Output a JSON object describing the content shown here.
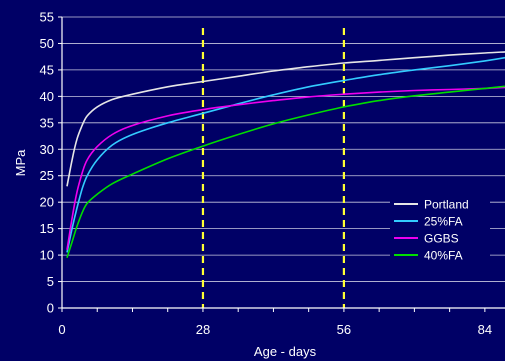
{
  "chart_data": {
    "type": "line",
    "title": "",
    "xlabel": "Age - days",
    "ylabel": "MPa",
    "xlim": [
      0,
      88
    ],
    "ylim": [
      0,
      55
    ],
    "x_ticks": [
      0,
      28,
      56,
      84
    ],
    "y_ticks": [
      0,
      5,
      10,
      15,
      20,
      25,
      30,
      35,
      40,
      45,
      50,
      55
    ],
    "grid": "horizontal",
    "legend_position": "right",
    "reference_lines": [
      {
        "axis": "x",
        "value": 28,
        "style": "dashed",
        "color": "#ffff33"
      },
      {
        "axis": "x",
        "value": 56,
        "style": "dashed",
        "color": "#ffff33"
      }
    ],
    "series": [
      {
        "name": "Portland",
        "color": "#e6e6e6",
        "points": [
          [
            1,
            23
          ],
          [
            2,
            28
          ],
          [
            3,
            32
          ],
          [
            4,
            34.5
          ],
          [
            5,
            36.3
          ],
          [
            7,
            38
          ],
          [
            10,
            39.4
          ],
          [
            14,
            40.4
          ],
          [
            21,
            41.8
          ],
          [
            28,
            42.8
          ],
          [
            35,
            43.8
          ],
          [
            42,
            44.8
          ],
          [
            49,
            45.6
          ],
          [
            56,
            46.3
          ],
          [
            63,
            46.8
          ],
          [
            70,
            47.3
          ],
          [
            77,
            47.8
          ],
          [
            84,
            48.2
          ],
          [
            88,
            48.4
          ]
        ]
      },
      {
        "name": "25%FA",
        "color": "#33ccff",
        "points": [
          [
            1,
            10.5
          ],
          [
            2,
            15
          ],
          [
            3,
            19
          ],
          [
            4,
            22.5
          ],
          [
            5,
            25
          ],
          [
            7,
            28
          ],
          [
            10,
            30.8
          ],
          [
            14,
            32.8
          ],
          [
            21,
            35
          ],
          [
            28,
            36.8
          ],
          [
            35,
            38.6
          ],
          [
            42,
            40.3
          ],
          [
            49,
            41.8
          ],
          [
            56,
            43
          ],
          [
            63,
            44.1
          ],
          [
            70,
            45
          ],
          [
            77,
            45.8
          ],
          [
            84,
            46.7
          ],
          [
            88,
            47.3
          ]
        ]
      },
      {
        "name": "GGBS",
        "color": "#ee00ee",
        "points": [
          [
            1,
            11
          ],
          [
            2,
            17
          ],
          [
            3,
            22
          ],
          [
            4,
            25.5
          ],
          [
            5,
            28
          ],
          [
            7,
            30.5
          ],
          [
            10,
            32.8
          ],
          [
            14,
            34.5
          ],
          [
            21,
            36.3
          ],
          [
            28,
            37.5
          ],
          [
            35,
            38.4
          ],
          [
            42,
            39.2
          ],
          [
            49,
            39.9
          ],
          [
            56,
            40.4
          ],
          [
            63,
            40.8
          ],
          [
            70,
            41.1
          ],
          [
            77,
            41.3
          ],
          [
            84,
            41.5
          ],
          [
            88,
            41.7
          ]
        ]
      },
      {
        "name": "40%FA",
        "color": "#00dd00",
        "points": [
          [
            1,
            9.5
          ],
          [
            2,
            12.5
          ],
          [
            3,
            15.5
          ],
          [
            4,
            18
          ],
          [
            5,
            19.8
          ],
          [
            7,
            21.5
          ],
          [
            10,
            23.5
          ],
          [
            14,
            25.3
          ],
          [
            21,
            28.2
          ],
          [
            28,
            30.6
          ],
          [
            35,
            32.8
          ],
          [
            42,
            34.8
          ],
          [
            49,
            36.5
          ],
          [
            56,
            38
          ],
          [
            63,
            39.2
          ],
          [
            70,
            40.1
          ],
          [
            77,
            40.8
          ],
          [
            84,
            41.5
          ],
          [
            88,
            41.9
          ]
        ]
      }
    ]
  }
}
